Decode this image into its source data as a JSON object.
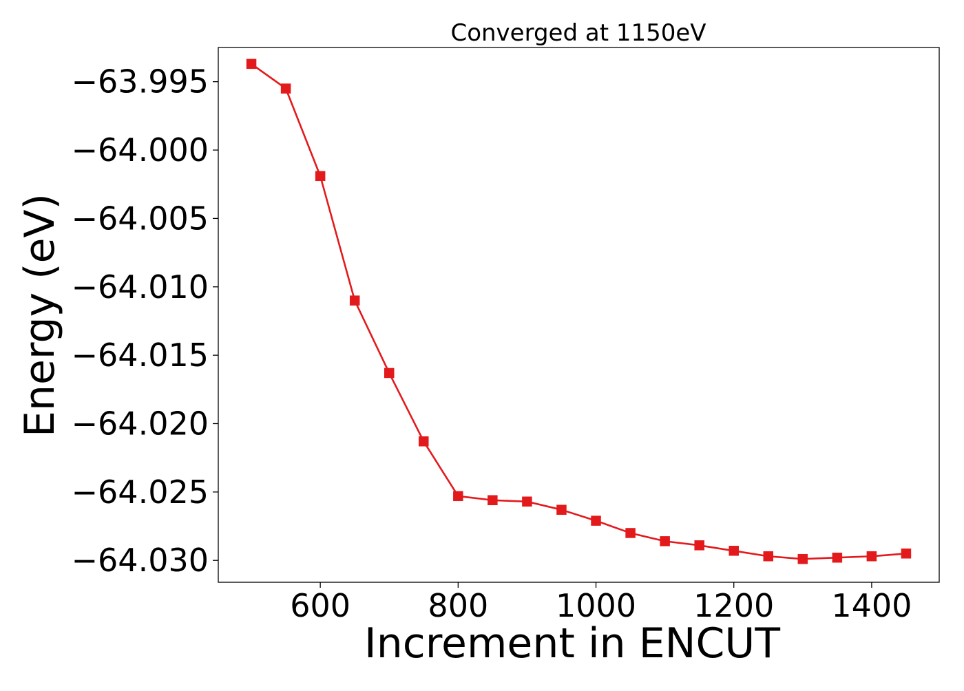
{
  "chart_data": {
    "type": "line",
    "title": "Converged at 1150eV",
    "xlabel": "Increment in ENCUT",
    "ylabel": "Energy (eV)",
    "xlim": [
      452,
      1498
    ],
    "ylim": [
      -64.0316,
      -63.9925
    ],
    "xticks": [
      600,
      800,
      1000,
      1200,
      1400
    ],
    "xtick_labels": [
      "600",
      "800",
      "1000",
      "1200",
      "1400"
    ],
    "yticks": [
      -63.995,
      -64.0,
      -64.005,
      -64.01,
      -64.015,
      -64.02,
      -64.025,
      -64.03
    ],
    "ytick_labels": [
      "−63.995",
      "−64.000",
      "−64.005",
      "−64.010",
      "−64.015",
      "−64.020",
      "−64.025",
      "−64.030"
    ],
    "grid": false,
    "legend": false,
    "series": [
      {
        "color": "#e31a1c",
        "marker": "square",
        "x": [
          500,
          550,
          600,
          650,
          700,
          750,
          800,
          850,
          900,
          950,
          1000,
          1050,
          1100,
          1150,
          1200,
          1250,
          1300,
          1350,
          1400,
          1450
        ],
        "y": [
          -63.9937,
          -63.9955,
          -64.0019,
          -64.011,
          -64.0163,
          -64.0213,
          -64.0253,
          -64.0256,
          -64.0257,
          -64.0263,
          -64.0271,
          -64.028,
          -64.0286,
          -64.0289,
          -64.0293,
          -64.0297,
          -64.0299,
          -64.0298,
          -64.0297,
          -64.0295
        ]
      }
    ]
  }
}
